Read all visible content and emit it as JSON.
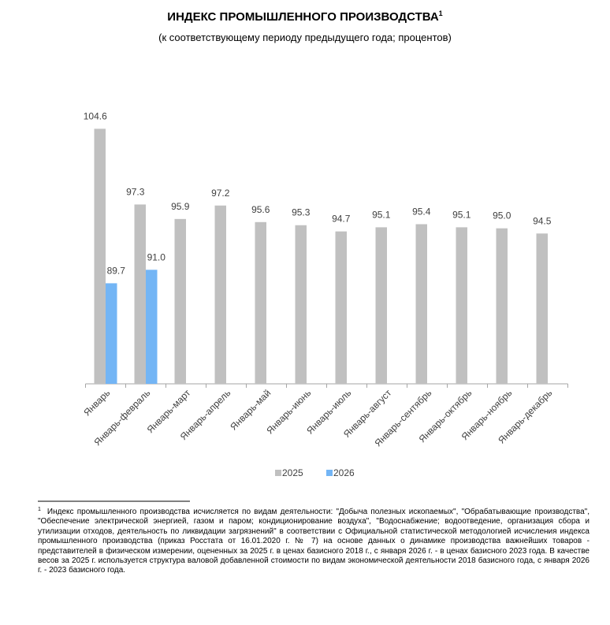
{
  "chart_data": {
    "type": "bar",
    "title": "ИНДЕКС ПРОМЫШЛЕННОГО ПРОИЗВОДСТВА",
    "title_superscript": "1",
    "subtitle": "(к соответствующему периоду предыдущего года; процентов)",
    "categories": [
      "Январь",
      "Январь-февраль",
      "Январь-март",
      "Январь-апрель",
      "Январь-май",
      "Январь-июнь",
      "Январь-июль",
      "Январь-август",
      "Январь-сентябрь",
      "Январь-октябрь",
      "Январь-ноябрь",
      "Январь-декабрь"
    ],
    "series": [
      {
        "name": "2025",
        "color": "#c0c0c0",
        "values": [
          104.6,
          97.3,
          95.9,
          97.2,
          95.6,
          95.3,
          94.7,
          95.1,
          95.4,
          95.1,
          95.0,
          94.5
        ],
        "value_labels": [
          "104.6",
          "97.3",
          "95.9",
          "97.2",
          "95.6",
          "95.3",
          "94.7",
          "95.1",
          "95.4",
          "95.1",
          "95.0",
          "94.5"
        ]
      },
      {
        "name": "2026",
        "color": "#73b5f5",
        "values": [
          89.7,
          91.0,
          null,
          null,
          null,
          null,
          null,
          null,
          null,
          null,
          null,
          null
        ],
        "value_labels": [
          "89.7",
          "91.0",
          null,
          null,
          null,
          null,
          null,
          null,
          null,
          null,
          null,
          null
        ]
      }
    ],
    "ylim": [
      80,
      106
    ],
    "legend": "bottom"
  },
  "footnote": {
    "marker": "1",
    "text": "Индекс промышленного производства исчисляется по видам деятельности: \"Добыча полезных ископаемых\", \"Обрабатывающие производства\", \"Обеспечение электрической энергией, газом и паром; кондиционирование воздуха\", \"Водоснабжение; водоотведение, организация сбора и утилизации отходов, деятельность по ликвидации загрязнений\" в соответствии с Официальной статистической методологией исчисления индекса промышленного производства (приказ Росстата от 16.01.2020 г. № 7) на основе данных о динамике производства важнейших товаров - представителей в физическом измерении, оцененных за 2025 г. в ценах базисного 2018 г., с января 2026 г. - в ценах базисного 2023 года. В качестве весов за 2025 г. используется структура валовой добавленной стоимости по видам экономической деятельности 2018 базисного года, с января 2026 г. - 2023 базисного года."
  }
}
